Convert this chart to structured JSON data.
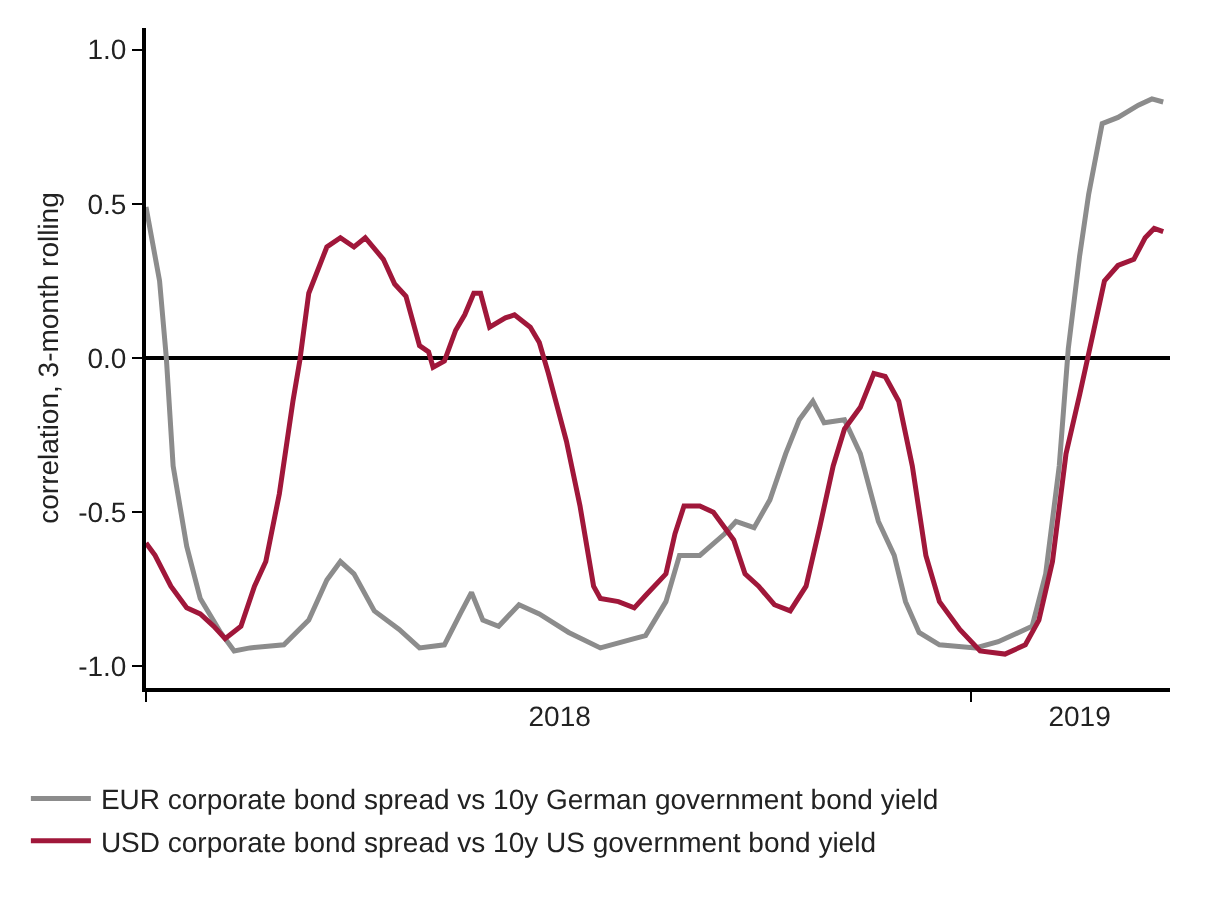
{
  "chart_data": {
    "type": "line",
    "ylabel": "correlation, 3-month rolling",
    "xlim": [
      "2018-01-01",
      "2019-03-30"
    ],
    "xticks": [
      {
        "value": "2018-01-01",
        "label": null
      },
      {
        "value": "2018-07-03",
        "label": "2018"
      },
      {
        "value": "2019-01-01",
        "label": null
      },
      {
        "value": "2019-02-18",
        "label": "2019"
      }
    ],
    "ylim": [
      -1.07,
      1.07
    ],
    "yticks": [
      {
        "value": -1,
        "label": "-1.0"
      },
      {
        "value": -0.5,
        "label": "-0.5"
      },
      {
        "value": 0,
        "label": "0.0"
      },
      {
        "value": 0.5,
        "label": "0.5"
      },
      {
        "value": 1,
        "label": "1.0"
      }
    ],
    "grid": false,
    "legend": "bottom",
    "marker": "none",
    "line_style": "solid",
    "ref_lines": [
      {
        "axis": "y",
        "value": 0,
        "color": "#000000"
      }
    ],
    "series": [
      {
        "name": "EUR corporate bond spread vs 10y German government bond yield",
        "color": "#8c8c8c",
        "x": [
          "2018-01-01",
          "2018-01-07",
          "2018-01-10",
          "2018-01-13",
          "2018-01-19",
          "2018-01-25",
          "2018-02-03",
          "2018-02-09",
          "2018-02-16",
          "2018-03-03",
          "2018-03-14",
          "2018-03-22",
          "2018-03-28",
          "2018-04-03",
          "2018-04-12",
          "2018-04-23",
          "2018-05-02",
          "2018-05-13",
          "2018-05-20",
          "2018-05-25",
          "2018-05-30",
          "2018-06-06",
          "2018-06-15",
          "2018-06-24",
          "2018-07-07",
          "2018-07-21",
          "2018-08-05",
          "2018-08-10",
          "2018-08-19",
          "2018-08-25",
          "2018-09-03",
          "2018-09-14",
          "2018-09-19",
          "2018-09-27",
          "2018-10-04",
          "2018-10-11",
          "2018-10-17",
          "2018-10-23",
          "2018-10-28",
          "2018-11-06",
          "2018-11-13",
          "2018-11-21",
          "2018-11-28",
          "2018-12-03",
          "2018-12-09",
          "2018-12-18",
          "2019-01-03",
          "2019-01-13",
          "2019-01-28",
          "2019-02-03",
          "2019-02-09",
          "2019-02-13",
          "2019-02-18",
          "2019-02-22",
          "2019-02-28",
          "2019-03-07",
          "2019-03-16",
          "2019-03-22",
          "2019-03-27"
        ],
        "values": [
          0.49,
          0.25,
          0.0,
          -0.35,
          -0.61,
          -0.78,
          -0.89,
          -0.95,
          -0.94,
          -0.93,
          -0.85,
          -0.72,
          -0.66,
          -0.7,
          -0.82,
          -0.88,
          -0.94,
          -0.93,
          -0.83,
          -0.76,
          -0.85,
          -0.87,
          -0.8,
          -0.83,
          -0.89,
          -0.94,
          -0.91,
          -0.9,
          -0.79,
          -0.64,
          -0.64,
          -0.57,
          -0.53,
          -0.55,
          -0.46,
          -0.31,
          -0.2,
          -0.14,
          -0.21,
          -0.2,
          -0.31,
          -0.53,
          -0.64,
          -0.79,
          -0.89,
          -0.93,
          -0.94,
          -0.92,
          -0.87,
          -0.7,
          -0.35,
          0.03,
          0.33,
          0.53,
          0.76,
          0.78,
          0.82,
          0.84,
          0.83
        ]
      },
      {
        "name": "USD corporate bond spread vs 10y US government bond yield",
        "color": "#a0173a",
        "x": [
          "2018-01-01",
          "2018-01-05",
          "2018-01-12",
          "2018-01-19",
          "2018-01-25",
          "2018-01-31",
          "2018-02-05",
          "2018-02-12",
          "2018-02-18",
          "2018-02-23",
          "2018-03-01",
          "2018-03-07",
          "2018-03-10",
          "2018-03-14",
          "2018-03-22",
          "2018-03-28",
          "2018-04-03",
          "2018-04-08",
          "2018-04-16",
          "2018-04-21",
          "2018-04-26",
          "2018-05-02",
          "2018-05-06",
          "2018-05-08",
          "2018-05-13",
          "2018-05-18",
          "2018-05-22",
          "2018-05-26",
          "2018-05-29",
          "2018-06-02",
          "2018-06-09",
          "2018-06-13",
          "2018-06-20",
          "2018-06-24",
          "2018-06-28",
          "2018-07-06",
          "2018-07-12",
          "2018-07-18",
          "2018-07-21",
          "2018-07-29",
          "2018-08-05",
          "2018-08-10",
          "2018-08-19",
          "2018-08-23",
          "2018-08-27",
          "2018-09-03",
          "2018-09-09",
          "2018-09-18",
          "2018-09-23",
          "2018-09-29",
          "2018-10-06",
          "2018-10-13",
          "2018-10-20",
          "2018-10-26",
          "2018-11-01",
          "2018-11-06",
          "2018-11-13",
          "2018-11-19",
          "2018-11-24",
          "2018-11-30",
          "2018-12-06",
          "2018-12-12",
          "2018-12-18",
          "2018-12-27",
          "2019-01-05",
          "2019-01-16",
          "2019-01-25",
          "2019-01-31",
          "2019-02-06",
          "2019-02-12",
          "2019-02-18",
          "2019-02-24",
          "2019-03-01",
          "2019-03-07",
          "2019-03-14",
          "2019-03-19",
          "2019-03-23",
          "2019-03-27"
        ],
        "values": [
          -0.6,
          -0.64,
          -0.74,
          -0.81,
          -0.83,
          -0.87,
          -0.91,
          -0.87,
          -0.74,
          -0.66,
          -0.44,
          -0.14,
          -0.01,
          0.21,
          0.36,
          0.39,
          0.36,
          0.39,
          0.32,
          0.24,
          0.2,
          0.04,
          0.02,
          -0.03,
          -0.01,
          0.09,
          0.14,
          0.21,
          0.21,
          0.1,
          0.13,
          0.14,
          0.1,
          0.05,
          -0.05,
          -0.27,
          -0.48,
          -0.74,
          -0.78,
          -0.79,
          -0.81,
          -0.77,
          -0.7,
          -0.57,
          -0.48,
          -0.48,
          -0.5,
          -0.59,
          -0.7,
          -0.74,
          -0.8,
          -0.82,
          -0.74,
          -0.55,
          -0.35,
          -0.23,
          -0.16,
          -0.05,
          -0.06,
          -0.14,
          -0.35,
          -0.64,
          -0.79,
          -0.88,
          -0.95,
          -0.96,
          -0.93,
          -0.85,
          -0.66,
          -0.31,
          -0.12,
          0.08,
          0.25,
          0.3,
          0.32,
          0.39,
          0.42,
          0.41
        ]
      }
    ]
  }
}
